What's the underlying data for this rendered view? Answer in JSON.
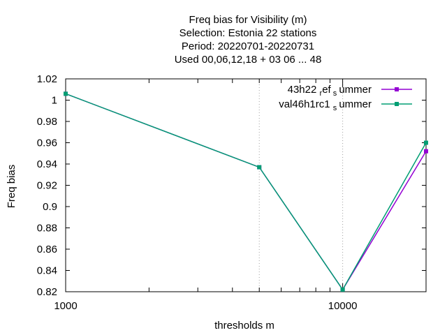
{
  "chart_data": {
    "type": "line",
    "title_lines": [
      "Freq bias  for Visibility (m)",
      "Selection: Estonia      22 stations",
      "Period: 20220701-20220731",
      "Used  00,06,12,18  + 03 06 ... 48"
    ],
    "xlabel": "thresholds m",
    "ylabel": "Freq bias",
    "x_scale": "log",
    "xlim": [
      1000,
      20000
    ],
    "ylim": [
      0.82,
      1.02
    ],
    "x_ticks": [
      1000,
      10000
    ],
    "x_tick_labels": [
      "1000",
      "10000"
    ],
    "y_ticks": [
      0.82,
      0.84,
      0.86,
      0.88,
      0.9,
      0.92,
      0.94,
      0.96,
      0.98,
      1,
      1.02
    ],
    "y_tick_labels": [
      "0.82",
      "0.84",
      "0.86",
      "0.88",
      "0.9",
      "0.92",
      "0.94",
      "0.96",
      "0.98",
      "1",
      "1.02"
    ],
    "grid_x_values": [
      5000,
      10000
    ],
    "grid": "x-only",
    "legend_position": "top-right",
    "series": [
      {
        "name_parts": [
          "43h22",
          "ref",
          "s",
          "ummer"
        ],
        "color": "#9400d3",
        "x": [
          1000,
          5000,
          10000,
          20000
        ],
        "y": [
          1.006,
          0.937,
          0.822,
          0.952
        ]
      },
      {
        "name_parts": [
          "val46h1rc1",
          "",
          "s",
          "ummer"
        ],
        "color": "#009e73",
        "x": [
          1000,
          5000,
          10000,
          20000
        ],
        "y": [
          1.006,
          0.937,
          0.822,
          0.96
        ]
      }
    ]
  }
}
